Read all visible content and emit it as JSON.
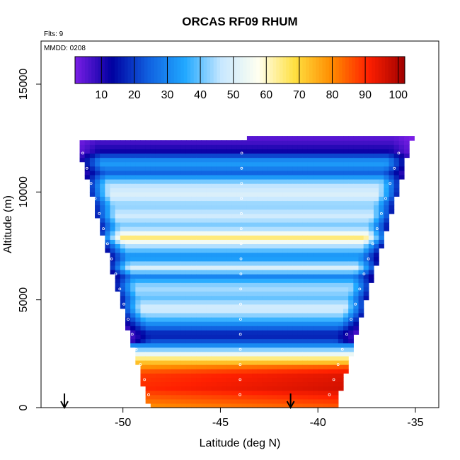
{
  "chart_data": {
    "type": "heatmap",
    "title": "ORCAS RF09 RHUM",
    "subtitle": "Flts: 9",
    "annotation": "MMDD: 0208",
    "xlabel": "Latitude (deg N)",
    "ylabel": "Altitude (m)",
    "xlim": [
      -54.2,
      -33.8
    ],
    "ylim": [
      0,
      17000
    ],
    "xticks": [
      -50,
      -45,
      -40,
      -35
    ],
    "xtick_labels": [
      "-50",
      "-45",
      "-40",
      "-35"
    ],
    "yticks": [
      0,
      5000,
      10000,
      15000
    ],
    "ytick_labels": [
      "0",
      "5000",
      "10000",
      "15000"
    ],
    "colorbar": {
      "ticks": [
        10,
        20,
        30,
        40,
        50,
        60,
        70,
        80,
        90,
        100
      ],
      "tick_labels": [
        "10",
        "20",
        "30",
        "40",
        "50",
        "60",
        "70",
        "80",
        "90",
        "100"
      ],
      "range": [
        2,
        102
      ],
      "colors": [
        "#7a1ee6",
        "#0000a0",
        "#1060e0",
        "#20a8ff",
        "#c8e8ff",
        "#fffff0",
        "#ffe040",
        "#ff8c00",
        "#ff2000",
        "#a00000"
      ]
    },
    "domain": {
      "left_bottom": [
        -48.8,
        0
      ],
      "left_top": [
        -52.6,
        12200
      ],
      "right_bottom": [
        -39.2,
        0
      ],
      "right_top": [
        -35.2,
        12600
      ]
    },
    "humidity_profile": [
      {
        "alt": 0,
        "rh": 80
      },
      {
        "alt": 800,
        "rh": 90
      },
      {
        "alt": 1500,
        "rh": 88
      },
      {
        "alt": 2100,
        "rh": 70
      },
      {
        "alt": 2500,
        "rh": 48
      },
      {
        "alt": 2900,
        "rh": 25
      },
      {
        "alt": 3300,
        "rh": 15
      },
      {
        "alt": 3700,
        "rh": 28
      },
      {
        "alt": 4100,
        "rh": 40
      },
      {
        "alt": 4500,
        "rh": 50
      },
      {
        "alt": 5000,
        "rh": 40
      },
      {
        "alt": 5500,
        "rh": 45
      },
      {
        "alt": 6000,
        "rh": 30
      },
      {
        "alt": 6400,
        "rh": 50
      },
      {
        "alt": 6900,
        "rh": 30
      },
      {
        "alt": 7400,
        "rh": 45
      },
      {
        "alt": 7800,
        "rh": 65
      },
      {
        "alt": 8300,
        "rh": 40
      },
      {
        "alt": 8800,
        "rh": 48
      },
      {
        "alt": 9300,
        "rh": 42
      },
      {
        "alt": 9800,
        "rh": 50
      },
      {
        "alt": 10300,
        "rh": 45
      },
      {
        "alt": 10800,
        "rh": 25
      },
      {
        "alt": 11300,
        "rh": 35
      },
      {
        "alt": 11800,
        "rh": 12
      },
      {
        "alt": 12300,
        "rh": 6
      },
      {
        "alt": 12700,
        "rh": 3
      }
    ],
    "arrow_markers_lat": [
      -53.0,
      -41.4
    ]
  }
}
